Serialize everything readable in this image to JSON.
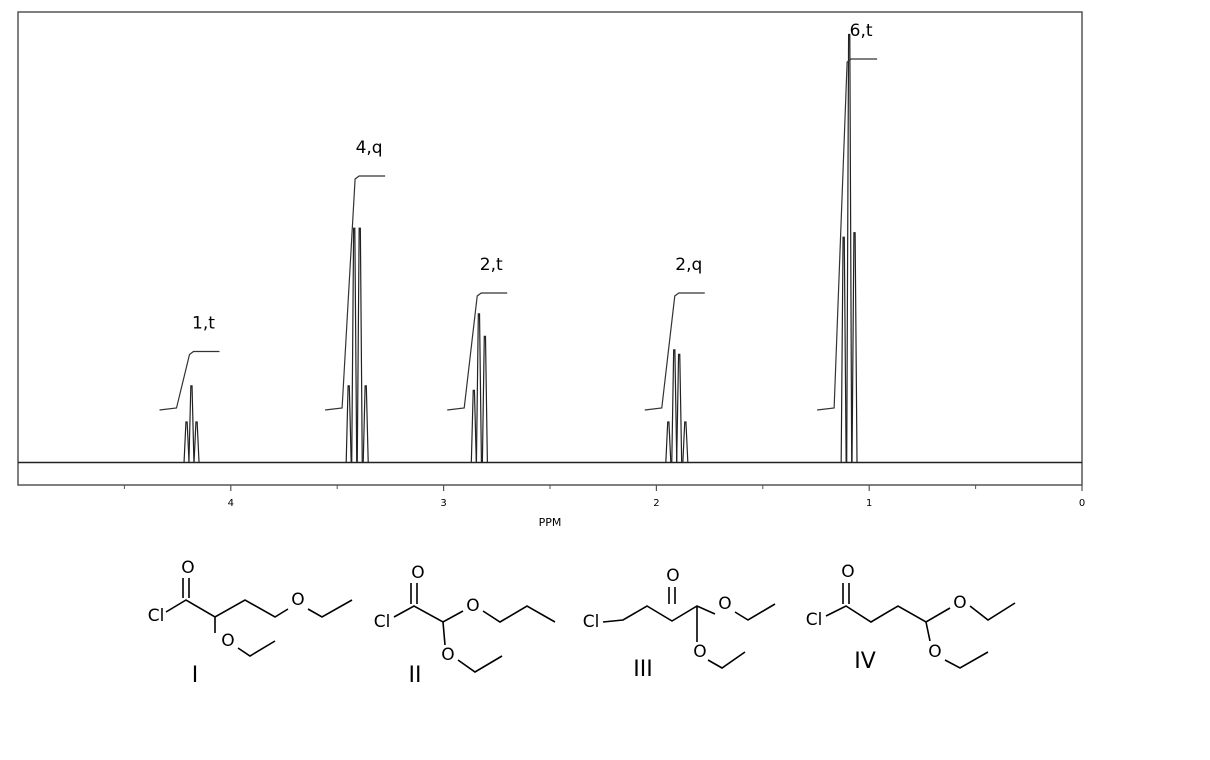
{
  "chart_data": {
    "type": "nmr-spectrum",
    "x_label": "PPM",
    "xlim": [
      5,
      0
    ],
    "xticks": [
      4,
      3,
      2,
      1,
      0
    ],
    "xminor_ticks": [
      4.5,
      3.5,
      2.5,
      1.5,
      0.5
    ],
    "ylim": [
      -5,
      100
    ],
    "color": "#222222",
    "peaks": [
      {
        "label": "1,t",
        "integral": 1,
        "lines": [
          {
            "ppm": 4.208,
            "height": 9
          },
          {
            "ppm": 4.185,
            "height": 17
          },
          {
            "ppm": 4.161,
            "height": 9
          }
        ]
      },
      {
        "label": "4,q",
        "integral": 4,
        "lines": [
          {
            "ppm": 3.446,
            "height": 17
          },
          {
            "ppm": 3.42,
            "height": 52
          },
          {
            "ppm": 3.394,
            "height": 52
          },
          {
            "ppm": 3.366,
            "height": 17
          }
        ]
      },
      {
        "label": "2,t",
        "integral": 2,
        "lines": [
          {
            "ppm": 2.858,
            "height": 16
          },
          {
            "ppm": 2.834,
            "height": 33
          },
          {
            "ppm": 2.806,
            "height": 28
          }
        ]
      },
      {
        "label": "2,q",
        "integral": 2,
        "lines": [
          {
            "ppm": 1.944,
            "height": 9
          },
          {
            "ppm": 1.916,
            "height": 25
          },
          {
            "ppm": 1.893,
            "height": 24
          },
          {
            "ppm": 1.864,
            "height": 9
          }
        ]
      },
      {
        "label": "6,t",
        "integral": 6,
        "lines": [
          {
            "ppm": 1.12,
            "height": 50
          },
          {
            "ppm": 1.094,
            "height": 95
          },
          {
            "ppm": 1.069,
            "height": 51
          }
        ]
      }
    ]
  },
  "structures": [
    {
      "label": "I",
      "atoms": [
        "O",
        "Cl",
        "O",
        "O"
      ]
    },
    {
      "label": "II",
      "atoms": [
        "O",
        "Cl",
        "O",
        "O"
      ]
    },
    {
      "label": "III",
      "atoms": [
        "Cl",
        "O",
        "O",
        "O"
      ]
    },
    {
      "label": "IV",
      "atoms": [
        "O",
        "Cl",
        "O",
        "O"
      ]
    }
  ]
}
